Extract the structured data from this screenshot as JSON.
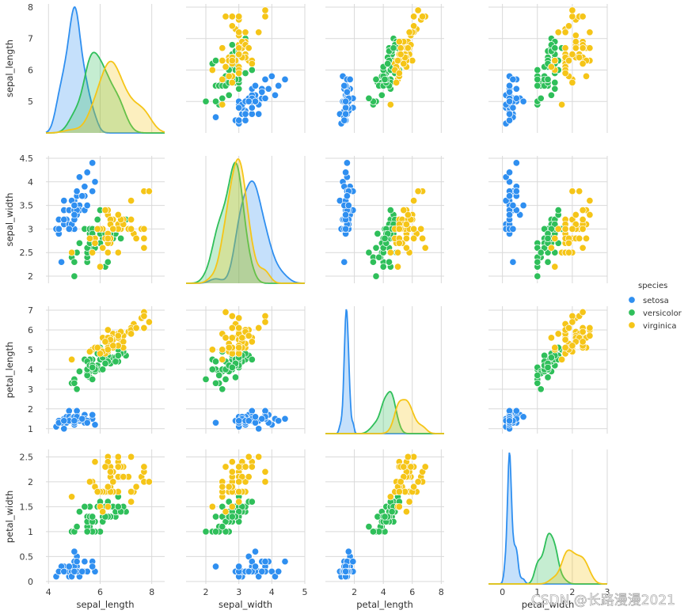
{
  "chart_data": {
    "type": "scatter",
    "subtype": "pairplot",
    "variables": [
      "sepal_length",
      "sepal_width",
      "petal_length",
      "petal_width"
    ],
    "diagonal": "kde",
    "species_colors": {
      "setosa": "#2f8ff0",
      "versicolor": "#2fbf5a",
      "virginica": "#f5c518"
    },
    "legend": {
      "title": "species",
      "entries": [
        "setosa",
        "versicolor",
        "virginica"
      ],
      "position": "right"
    },
    "axes": {
      "sepal_length": {
        "label": "sepal_length",
        "range": [
          3.9,
          8.5
        ],
        "xticks": [
          4,
          6,
          8
        ],
        "yrange": [
          4.0,
          8.1
        ],
        "yticks": [
          5,
          6,
          7,
          8
        ]
      },
      "sepal_width": {
        "label": "sepal_width",
        "range": [
          1.4,
          5.0
        ],
        "xticks": [
          2,
          3,
          4,
          5
        ],
        "yrange": [
          1.85,
          4.55
        ],
        "yticks": [
          2.0,
          2.5,
          3.0,
          3.5,
          4.0,
          4.5
        ]
      },
      "petal_length": {
        "label": "petal_length",
        "range": [
          0.0,
          8.2
        ],
        "xticks": [
          2,
          4,
          6,
          8
        ],
        "yrange": [
          0.75,
          7.2
        ],
        "yticks": [
          1,
          2,
          3,
          4,
          5,
          6,
          7
        ]
      },
      "petal_width": {
        "label": "petal_width",
        "range": [
          -0.4,
          3.0
        ],
        "xticks": [
          0,
          1,
          2,
          3
        ],
        "yrange": [
          -0.05,
          2.65
        ],
        "yticks": [
          0.0,
          0.5,
          1.0,
          1.5,
          2.0,
          2.5
        ]
      }
    },
    "records": {
      "setosa": [
        [
          5.1,
          3.5,
          1.4,
          0.2
        ],
        [
          4.9,
          3.0,
          1.4,
          0.2
        ],
        [
          4.7,
          3.2,
          1.3,
          0.2
        ],
        [
          4.6,
          3.1,
          1.5,
          0.2
        ],
        [
          5.0,
          3.6,
          1.4,
          0.2
        ],
        [
          5.4,
          3.9,
          1.7,
          0.4
        ],
        [
          4.6,
          3.4,
          1.4,
          0.3
        ],
        [
          5.0,
          3.4,
          1.5,
          0.2
        ],
        [
          4.4,
          2.9,
          1.4,
          0.2
        ],
        [
          4.9,
          3.1,
          1.5,
          0.1
        ],
        [
          5.4,
          3.7,
          1.5,
          0.2
        ],
        [
          4.8,
          3.4,
          1.6,
          0.2
        ],
        [
          4.8,
          3.0,
          1.4,
          0.1
        ],
        [
          4.3,
          3.0,
          1.1,
          0.1
        ],
        [
          5.8,
          4.0,
          1.2,
          0.2
        ],
        [
          5.7,
          4.4,
          1.5,
          0.4
        ],
        [
          5.4,
          3.9,
          1.3,
          0.4
        ],
        [
          5.1,
          3.5,
          1.4,
          0.3
        ],
        [
          5.7,
          3.8,
          1.7,
          0.3
        ],
        [
          5.1,
          3.8,
          1.5,
          0.3
        ],
        [
          5.4,
          3.4,
          1.7,
          0.2
        ],
        [
          5.1,
          3.7,
          1.5,
          0.4
        ],
        [
          4.6,
          3.6,
          1.0,
          0.2
        ],
        [
          5.1,
          3.3,
          1.7,
          0.5
        ],
        [
          4.8,
          3.4,
          1.9,
          0.2
        ],
        [
          5.0,
          3.0,
          1.6,
          0.2
        ],
        [
          5.0,
          3.4,
          1.6,
          0.4
        ],
        [
          5.2,
          3.5,
          1.5,
          0.2
        ],
        [
          5.2,
          3.4,
          1.4,
          0.2
        ],
        [
          4.7,
          3.2,
          1.6,
          0.2
        ],
        [
          4.8,
          3.1,
          1.6,
          0.2
        ],
        [
          5.4,
          3.4,
          1.5,
          0.4
        ],
        [
          5.2,
          4.1,
          1.5,
          0.1
        ],
        [
          5.5,
          4.2,
          1.4,
          0.2
        ],
        [
          4.9,
          3.1,
          1.5,
          0.2
        ],
        [
          5.0,
          3.2,
          1.2,
          0.2
        ],
        [
          5.5,
          3.5,
          1.3,
          0.2
        ],
        [
          4.9,
          3.6,
          1.4,
          0.1
        ],
        [
          4.4,
          3.0,
          1.3,
          0.2
        ],
        [
          5.1,
          3.4,
          1.5,
          0.2
        ],
        [
          5.0,
          3.5,
          1.3,
          0.3
        ],
        [
          4.5,
          2.3,
          1.3,
          0.3
        ],
        [
          4.4,
          3.2,
          1.3,
          0.2
        ],
        [
          5.0,
          3.5,
          1.6,
          0.6
        ],
        [
          5.1,
          3.8,
          1.9,
          0.4
        ],
        [
          4.8,
          3.0,
          1.4,
          0.3
        ],
        [
          5.1,
          3.8,
          1.6,
          0.2
        ],
        [
          4.6,
          3.2,
          1.4,
          0.2
        ],
        [
          5.3,
          3.7,
          1.5,
          0.2
        ],
        [
          5.0,
          3.3,
          1.4,
          0.2
        ]
      ],
      "versicolor": [
        [
          7.0,
          3.2,
          4.7,
          1.4
        ],
        [
          6.4,
          3.2,
          4.5,
          1.5
        ],
        [
          6.9,
          3.1,
          4.9,
          1.5
        ],
        [
          5.5,
          2.3,
          4.0,
          1.3
        ],
        [
          6.5,
          2.8,
          4.6,
          1.5
        ],
        [
          5.7,
          2.8,
          4.5,
          1.3
        ],
        [
          6.3,
          3.3,
          4.7,
          1.6
        ],
        [
          4.9,
          2.4,
          3.3,
          1.0
        ],
        [
          6.6,
          2.9,
          4.6,
          1.3
        ],
        [
          5.2,
          2.7,
          3.9,
          1.4
        ],
        [
          5.0,
          2.0,
          3.5,
          1.0
        ],
        [
          5.9,
          3.0,
          4.2,
          1.5
        ],
        [
          6.0,
          2.2,
          4.0,
          1.0
        ],
        [
          6.1,
          2.9,
          4.7,
          1.4
        ],
        [
          5.6,
          2.9,
          3.6,
          1.3
        ],
        [
          6.7,
          3.1,
          4.4,
          1.4
        ],
        [
          5.6,
          3.0,
          4.5,
          1.5
        ],
        [
          5.8,
          2.7,
          4.1,
          1.0
        ],
        [
          6.2,
          2.2,
          4.5,
          1.5
        ],
        [
          5.6,
          2.5,
          3.9,
          1.1
        ],
        [
          5.9,
          3.2,
          4.8,
          1.8
        ],
        [
          6.1,
          2.8,
          4.0,
          1.3
        ],
        [
          6.3,
          2.5,
          4.9,
          1.5
        ],
        [
          6.1,
          2.8,
          4.7,
          1.2
        ],
        [
          6.4,
          2.9,
          4.3,
          1.3
        ],
        [
          6.6,
          3.0,
          4.4,
          1.4
        ],
        [
          6.8,
          2.8,
          4.8,
          1.4
        ],
        [
          6.7,
          3.0,
          5.0,
          1.7
        ],
        [
          6.0,
          2.9,
          4.5,
          1.5
        ],
        [
          5.7,
          2.6,
          3.5,
          1.0
        ],
        [
          5.5,
          2.4,
          3.8,
          1.1
        ],
        [
          5.5,
          2.4,
          3.7,
          1.0
        ],
        [
          5.8,
          2.7,
          3.9,
          1.2
        ],
        [
          6.0,
          2.7,
          5.1,
          1.6
        ],
        [
          5.4,
          3.0,
          4.5,
          1.5
        ],
        [
          6.0,
          3.4,
          4.5,
          1.6
        ],
        [
          6.7,
          3.1,
          4.7,
          1.5
        ],
        [
          6.3,
          2.3,
          4.4,
          1.3
        ],
        [
          5.6,
          3.0,
          4.1,
          1.3
        ],
        [
          5.5,
          2.5,
          4.0,
          1.3
        ],
        [
          5.5,
          2.6,
          4.4,
          1.2
        ],
        [
          6.1,
          3.0,
          4.6,
          1.4
        ],
        [
          5.8,
          2.6,
          4.0,
          1.2
        ],
        [
          5.0,
          2.3,
          3.3,
          1.0
        ],
        [
          5.6,
          2.7,
          4.2,
          1.3
        ],
        [
          5.7,
          3.0,
          4.2,
          1.2
        ],
        [
          5.7,
          2.9,
          4.2,
          1.3
        ],
        [
          6.2,
          2.9,
          4.3,
          1.3
        ],
        [
          5.1,
          2.5,
          3.0,
          1.1
        ],
        [
          5.7,
          2.8,
          4.1,
          1.3
        ]
      ],
      "virginica": [
        [
          6.3,
          3.3,
          6.0,
          2.5
        ],
        [
          5.8,
          2.7,
          5.1,
          1.9
        ],
        [
          7.1,
          3.0,
          5.9,
          2.1
        ],
        [
          6.3,
          2.9,
          5.6,
          1.8
        ],
        [
          6.5,
          3.0,
          5.8,
          2.2
        ],
        [
          7.6,
          3.0,
          6.6,
          2.1
        ],
        [
          4.9,
          2.5,
          4.5,
          1.7
        ],
        [
          7.3,
          2.9,
          6.3,
          1.8
        ],
        [
          6.7,
          2.5,
          5.8,
          1.8
        ],
        [
          7.2,
          3.6,
          6.1,
          2.5
        ],
        [
          6.5,
          3.2,
          5.1,
          2.0
        ],
        [
          6.4,
          2.7,
          5.3,
          1.9
        ],
        [
          6.8,
          3.0,
          5.5,
          2.1
        ],
        [
          5.7,
          2.5,
          5.0,
          2.0
        ],
        [
          5.8,
          2.8,
          5.1,
          2.4
        ],
        [
          6.4,
          3.2,
          5.3,
          2.3
        ],
        [
          6.5,
          3.0,
          5.5,
          1.8
        ],
        [
          7.7,
          3.8,
          6.7,
          2.2
        ],
        [
          7.7,
          2.6,
          6.9,
          2.3
        ],
        [
          6.0,
          2.2,
          5.0,
          1.5
        ],
        [
          6.9,
          3.2,
          5.7,
          2.3
        ],
        [
          5.6,
          2.8,
          4.9,
          2.0
        ],
        [
          7.7,
          2.8,
          6.7,
          2.0
        ],
        [
          6.3,
          2.7,
          4.9,
          1.8
        ],
        [
          6.7,
          3.3,
          5.7,
          2.1
        ],
        [
          7.2,
          3.2,
          6.0,
          1.8
        ],
        [
          6.2,
          2.8,
          4.8,
          1.8
        ],
        [
          6.1,
          3.0,
          4.9,
          1.8
        ],
        [
          6.4,
          2.8,
          5.6,
          2.1
        ],
        [
          7.2,
          3.0,
          5.8,
          1.6
        ],
        [
          7.4,
          2.8,
          6.1,
          1.9
        ],
        [
          7.9,
          3.8,
          6.4,
          2.0
        ],
        [
          6.4,
          2.8,
          5.6,
          2.2
        ],
        [
          6.3,
          2.8,
          5.1,
          1.5
        ],
        [
          6.1,
          2.6,
          5.6,
          1.4
        ],
        [
          7.7,
          3.0,
          6.1,
          2.3
        ],
        [
          6.3,
          3.4,
          5.6,
          2.4
        ],
        [
          6.4,
          3.1,
          5.5,
          1.8
        ],
        [
          6.0,
          3.0,
          4.8,
          1.8
        ],
        [
          6.9,
          3.1,
          5.4,
          2.1
        ],
        [
          6.7,
          3.1,
          5.6,
          2.4
        ],
        [
          6.9,
          3.1,
          5.1,
          2.3
        ],
        [
          5.8,
          2.7,
          5.1,
          1.9
        ],
        [
          6.8,
          3.2,
          5.9,
          2.3
        ],
        [
          6.7,
          3.3,
          5.7,
          2.5
        ],
        [
          6.7,
          3.0,
          5.2,
          2.3
        ],
        [
          6.3,
          2.5,
          5.0,
          1.9
        ],
        [
          6.5,
          3.0,
          5.2,
          2.0
        ],
        [
          6.2,
          3.4,
          5.4,
          2.3
        ],
        [
          5.9,
          3.0,
          5.1,
          1.8
        ]
      ]
    }
  },
  "watermark": "CSDN @长路漫漫2021"
}
